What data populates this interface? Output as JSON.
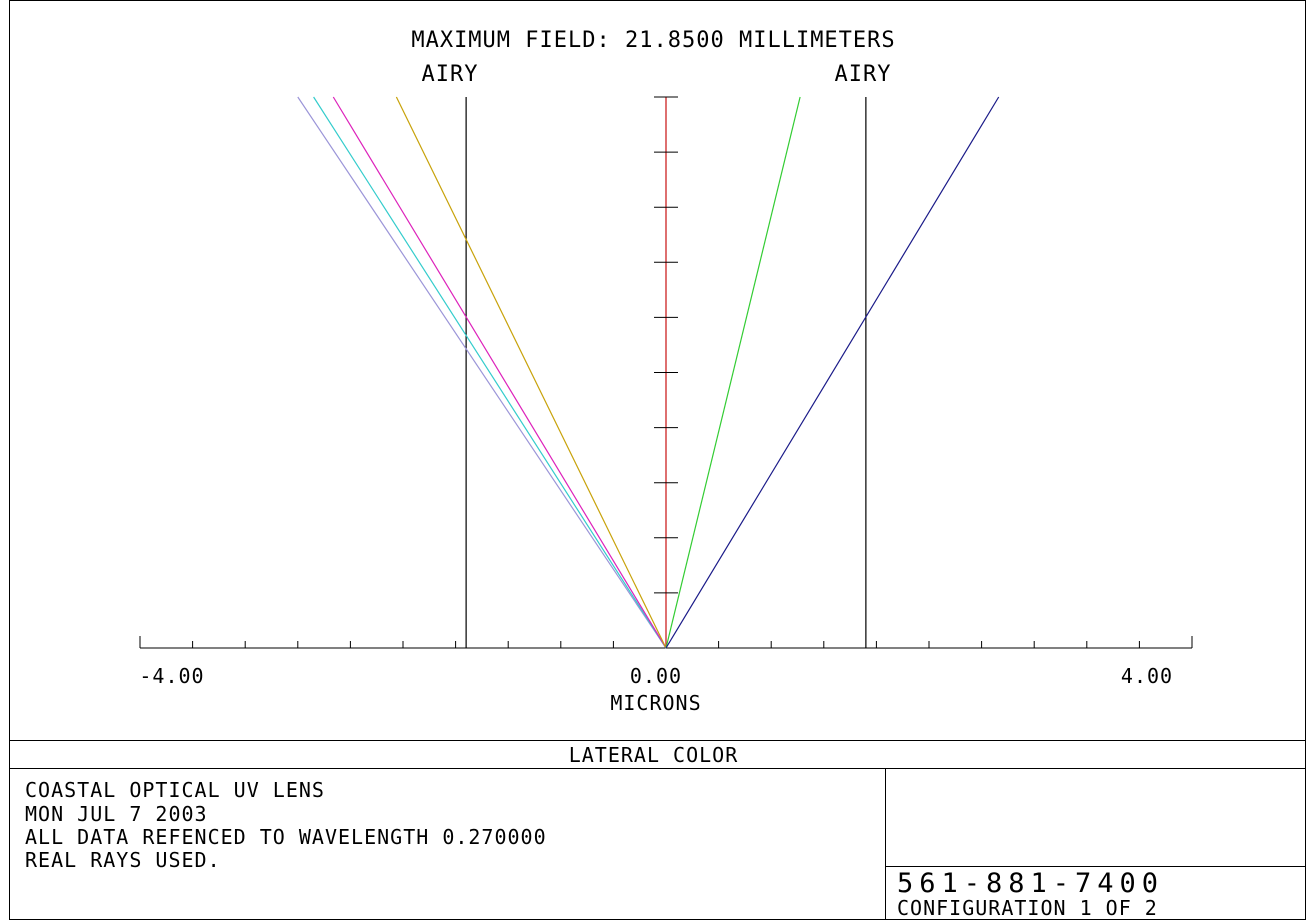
{
  "header": {
    "field_title": "MAXIMUM FIELD: 21.8500 MILLIMETERS",
    "airy_left": "AIRY",
    "airy_right": "AIRY"
  },
  "footer": {
    "plot_title": "LATERAL COLOR",
    "lens_name": "COASTAL OPTICAL UV LENS",
    "date": "MON JUL 7 2003",
    "reference": "ALL DATA REFENCED TO WAVELENGTH 0.270000",
    "rays": "REAL RAYS USED.",
    "phone": "561-881-7400",
    "configuration": "CONFIGURATION 1 OF 2"
  },
  "chart_data": {
    "type": "line",
    "title": "MAXIMUM FIELD: 21.8500 MILLIMETERS",
    "xlabel": "MICRONS",
    "ylabel": "",
    "xlim": [
      -4.0,
      4.0
    ],
    "ylim": [
      0,
      1
    ],
    "x_tick_labels": [
      "-4.00",
      "0.00",
      "4.00"
    ],
    "x_tick_values": [
      -4.0,
      0.0,
      4.0
    ],
    "x_minor_step": 0.4,
    "y_minor_step": 0.1,
    "airy_radius": [
      -1.52,
      1.52
    ],
    "airy_labels": [
      "AIRY",
      "AIRY"
    ],
    "airy_color": "#000000",
    "reference_axis_color": "#cc2222",
    "series": [
      {
        "color": "#9b95d8",
        "points": [
          [
            0,
            0
          ],
          [
            -2.8,
            1.0
          ]
        ]
      },
      {
        "color": "#33cccc",
        "points": [
          [
            0,
            0
          ],
          [
            -2.68,
            1.0
          ]
        ]
      },
      {
        "color": "#dd22bb",
        "points": [
          [
            0,
            0
          ],
          [
            -2.53,
            1.0
          ]
        ]
      },
      {
        "color": "#c8a20a",
        "points": [
          [
            0,
            0
          ],
          [
            -2.05,
            1.0
          ]
        ]
      },
      {
        "color": "#33cc33",
        "points": [
          [
            0,
            0
          ],
          [
            1.02,
            1.0
          ]
        ]
      },
      {
        "color": "#1a1a88",
        "points": [
          [
            0,
            0
          ],
          [
            2.53,
            1.0
          ]
        ]
      }
    ]
  }
}
